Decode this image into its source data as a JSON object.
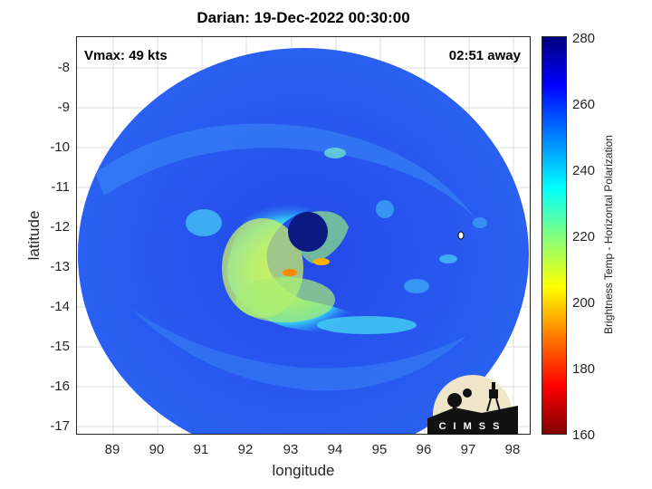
{
  "title": "Darian: 19-Dec-2022 00:30:00",
  "vmax_label": "Vmax: 49 kts",
  "away_label": "02:51 away",
  "xlabel": "longitude",
  "ylabel": "latitude",
  "colorbar_label": "Brightness Temp - Horizontal Polarization",
  "x_ticks": [
    "89",
    "90",
    "91",
    "92",
    "93",
    "94",
    "95",
    "96",
    "97",
    "98"
  ],
  "y_ticks": [
    "-8",
    "-9",
    "-10",
    "-11",
    "-12",
    "-13",
    "-14",
    "-15",
    "-16",
    "-17"
  ],
  "colorbar_ticks": [
    "280",
    "260",
    "240",
    "220",
    "200",
    "180",
    "160"
  ],
  "logo_text": "CIMSS",
  "colors": {
    "background_field": "#1f3fe6",
    "swath_edge": "#2a57f0",
    "rainband": "#8ee87a",
    "eye": "#0a1a80",
    "warm_spot": "#ff8a00"
  }
}
